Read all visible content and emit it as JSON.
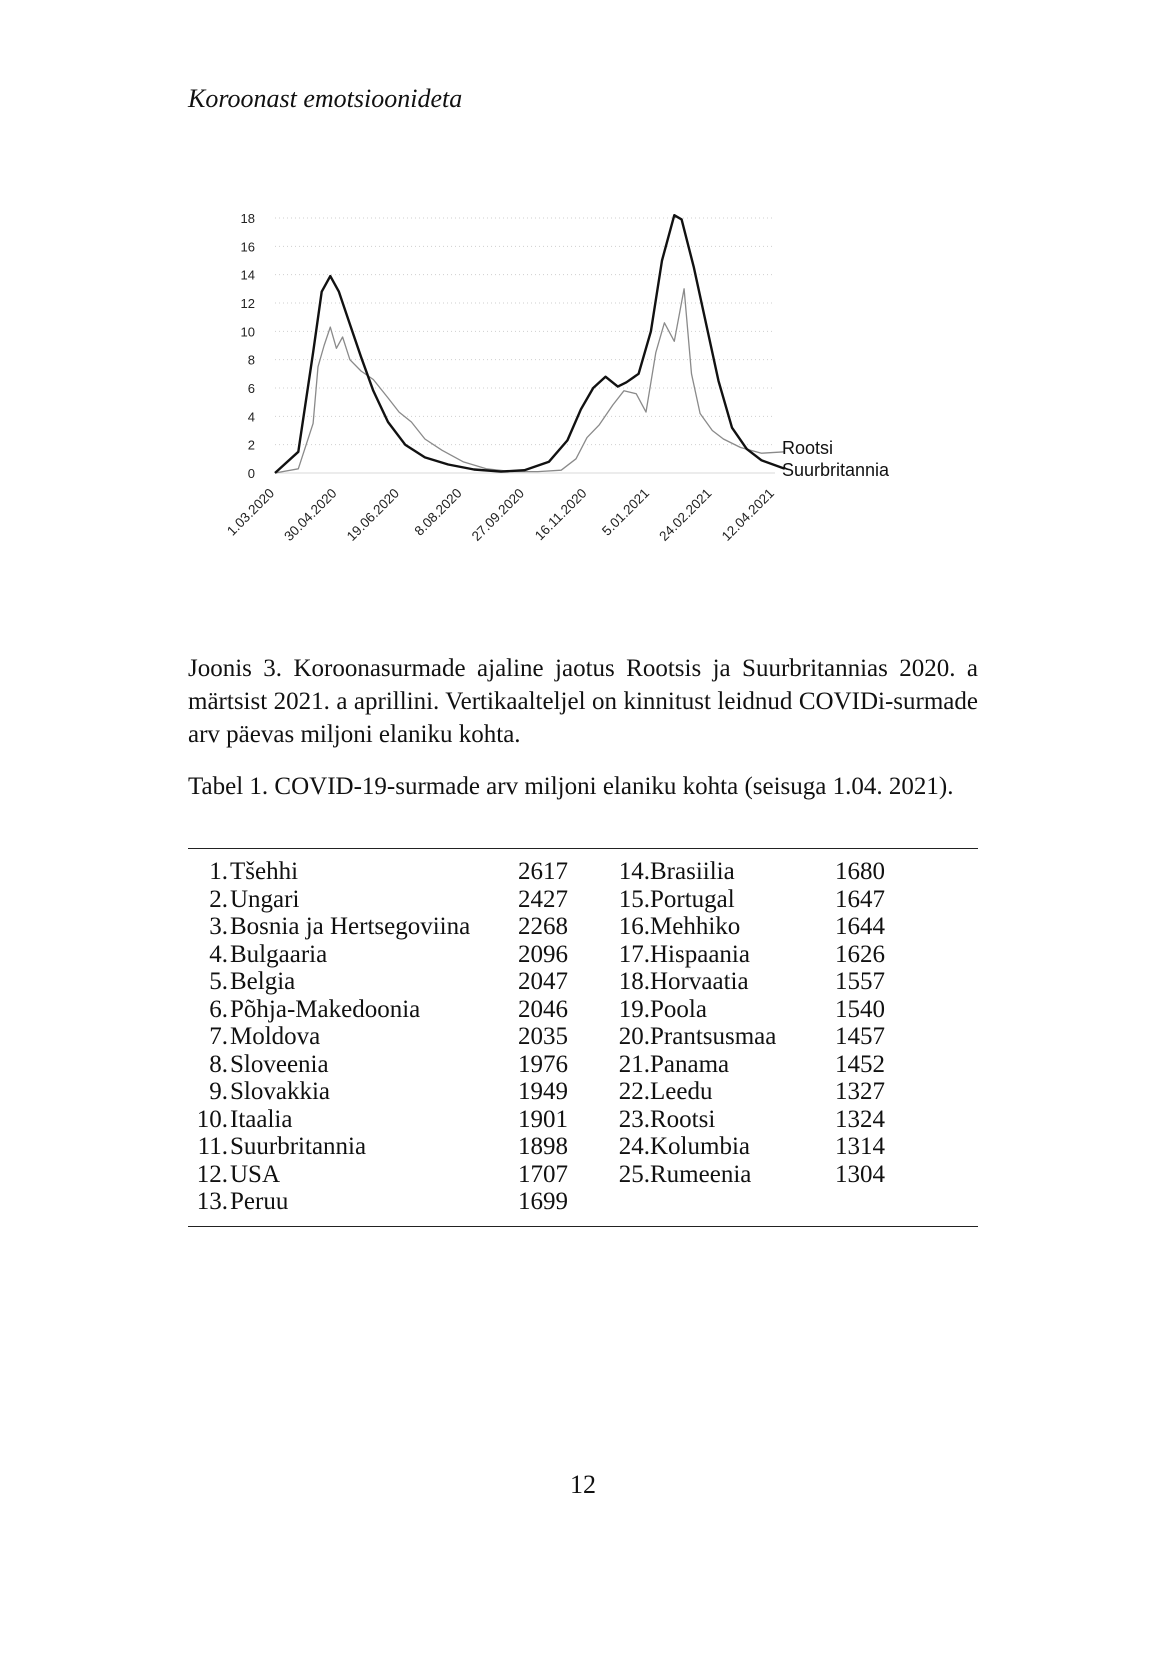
{
  "header": {
    "running_title": "Koroonast emotsioonideta"
  },
  "chart_data": {
    "type": "line",
    "x_tick_labels": [
      "1.03.2020",
      "30.04.2020",
      "19.06.2020",
      "8.08.2020",
      "27.09.2020",
      "16.11.2020",
      "5.01.2021",
      "24.02.2021",
      "12.04.2021"
    ],
    "y_tick_labels": [
      "0",
      "2",
      "4",
      "6",
      "8",
      "10",
      "12",
      "14",
      "16",
      "18"
    ],
    "ylim": [
      0,
      18
    ],
    "grid": "horizontal dotted",
    "legend": "right, at line ends",
    "series": [
      {
        "name": "Rootsi",
        "color": "#8a8a8a",
        "points": [
          [
            "2020-03-01",
            0
          ],
          [
            "2020-03-20",
            0.3
          ],
          [
            "2020-04-01",
            3.5
          ],
          [
            "2020-04-05",
            7.5
          ],
          [
            "2020-04-10",
            9.0
          ],
          [
            "2020-04-15",
            10.3
          ],
          [
            "2020-04-20",
            8.8
          ],
          [
            "2020-04-25",
            9.6
          ],
          [
            "2020-05-01",
            8.0
          ],
          [
            "2020-05-10",
            7.2
          ],
          [
            "2020-05-20",
            6.6
          ],
          [
            "2020-06-01",
            5.3
          ],
          [
            "2020-06-10",
            4.3
          ],
          [
            "2020-06-20",
            3.6
          ],
          [
            "2020-07-01",
            2.4
          ],
          [
            "2020-07-15",
            1.6
          ],
          [
            "2020-08-01",
            0.8
          ],
          [
            "2020-08-20",
            0.3
          ],
          [
            "2020-09-10",
            0.1
          ],
          [
            "2020-10-01",
            0.1
          ],
          [
            "2020-10-20",
            0.2
          ],
          [
            "2020-11-01",
            1.0
          ],
          [
            "2020-11-10",
            2.5
          ],
          [
            "2020-11-20",
            3.4
          ],
          [
            "2020-12-01",
            4.8
          ],
          [
            "2020-12-10",
            5.8
          ],
          [
            "2020-12-20",
            5.6
          ],
          [
            "2020-12-28",
            4.3
          ],
          [
            "2021-01-05",
            8.5
          ],
          [
            "2021-01-12",
            10.6
          ],
          [
            "2021-01-20",
            9.3
          ],
          [
            "2021-01-28",
            13.0
          ],
          [
            "2021-02-03",
            7.0
          ],
          [
            "2021-02-10",
            4.2
          ],
          [
            "2021-02-20",
            3.0
          ],
          [
            "2021-03-01",
            2.4
          ],
          [
            "2021-03-15",
            1.8
          ],
          [
            "2021-04-01",
            1.4
          ],
          [
            "2021-04-20",
            1.5
          ]
        ]
      },
      {
        "name": "Suurbritannia",
        "color": "#111111",
        "points": [
          [
            "2020-03-01",
            0
          ],
          [
            "2020-03-20",
            1.5
          ],
          [
            "2020-04-01",
            8.5
          ],
          [
            "2020-04-08",
            12.8
          ],
          [
            "2020-04-15",
            13.9
          ],
          [
            "2020-04-22",
            12.8
          ],
          [
            "2020-05-01",
            10.5
          ],
          [
            "2020-05-10",
            8.2
          ],
          [
            "2020-05-20",
            5.8
          ],
          [
            "2020-06-01",
            3.6
          ],
          [
            "2020-06-15",
            2.0
          ],
          [
            "2020-07-01",
            1.1
          ],
          [
            "2020-07-20",
            0.6
          ],
          [
            "2020-08-10",
            0.25
          ],
          [
            "2020-09-01",
            0.1
          ],
          [
            "2020-09-20",
            0.2
          ],
          [
            "2020-10-10",
            0.8
          ],
          [
            "2020-10-25",
            2.3
          ],
          [
            "2020-11-05",
            4.5
          ],
          [
            "2020-11-15",
            6.0
          ],
          [
            "2020-11-25",
            6.8
          ],
          [
            "2020-12-05",
            6.1
          ],
          [
            "2020-12-12",
            6.4
          ],
          [
            "2020-12-22",
            7.0
          ],
          [
            "2021-01-01",
            10.0
          ],
          [
            "2021-01-10",
            15.0
          ],
          [
            "2021-01-20",
            18.2
          ],
          [
            "2021-01-26",
            17.9
          ],
          [
            "2021-02-05",
            14.5
          ],
          [
            "2021-02-15",
            10.5
          ],
          [
            "2021-02-25",
            6.5
          ],
          [
            "2021-03-08",
            3.2
          ],
          [
            "2021-03-20",
            1.7
          ],
          [
            "2021-04-01",
            0.9
          ],
          [
            "2021-04-20",
            0.3
          ]
        ]
      }
    ]
  },
  "figure": {
    "caption": "Joonis 3. Koroonasurmade ajaline jaotus Rootsis ja Suurbritannias 2020. a märtsist 2021. a aprillini. Vertikaalteljel on kinnitust leidnud COVIDi-surmade arv päevas miljoni elaniku kohta."
  },
  "table": {
    "caption": "Tabel 1. COVID-19-surmade arv miljoni elaniku kohta (seisuga 1.04. 2021).",
    "left": [
      {
        "rank": "1.",
        "country": "Tšehhi",
        "value": "2617"
      },
      {
        "rank": "2.",
        "country": "Ungari",
        "value": "2427"
      },
      {
        "rank": "3.",
        "country": "Bosnia ja Hertsegoviina",
        "value": "2268"
      },
      {
        "rank": "4.",
        "country": "Bulgaaria",
        "value": "2096"
      },
      {
        "rank": "5.",
        "country": "Belgia",
        "value": "2047"
      },
      {
        "rank": "6.",
        "country": "Põhja-Makedoonia",
        "value": "2046"
      },
      {
        "rank": "7.",
        "country": "Moldova",
        "value": "2035"
      },
      {
        "rank": "8.",
        "country": "Sloveenia",
        "value": "1976"
      },
      {
        "rank": "9.",
        "country": "Slovakkia",
        "value": "1949"
      },
      {
        "rank": "10.",
        "country": "Itaalia",
        "value": "1901"
      },
      {
        "rank": "11.",
        "country": "Suurbritannia",
        "value": "1898"
      },
      {
        "rank": "12.",
        "country": "USA",
        "value": "1707"
      },
      {
        "rank": "13.",
        "country": "Peruu",
        "value": "1699"
      }
    ],
    "right": [
      {
        "rank": "14.",
        "country": "Brasiilia",
        "value": "1680"
      },
      {
        "rank": "15.",
        "country": "Portugal",
        "value": "1647"
      },
      {
        "rank": "16.",
        "country": "Mehhiko",
        "value": "1644"
      },
      {
        "rank": "17.",
        "country": "Hispaania",
        "value": "1626"
      },
      {
        "rank": "18.",
        "country": "Horvaatia",
        "value": "1557"
      },
      {
        "rank": "19.",
        "country": "Poola",
        "value": "1540"
      },
      {
        "rank": "20.",
        "country": "Prantsusmaa",
        "value": "1457"
      },
      {
        "rank": "21.",
        "country": "Panama",
        "value": "1452"
      },
      {
        "rank": "22.",
        "country": "Leedu",
        "value": "1327"
      },
      {
        "rank": "23.",
        "country": "Rootsi",
        "value": "1324"
      },
      {
        "rank": "24.",
        "country": "Kolumbia",
        "value": "1314"
      },
      {
        "rank": "25.",
        "country": "Rumeenia",
        "value": "1304"
      }
    ]
  },
  "footer": {
    "page_number": "12"
  }
}
